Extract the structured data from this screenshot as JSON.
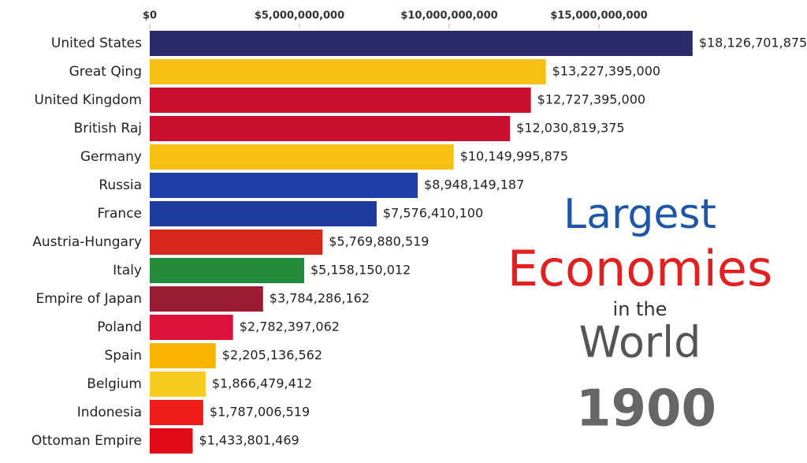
{
  "chart_data": {
    "type": "bar",
    "orientation": "horizontal",
    "title_lines": [
      {
        "text": "Largest",
        "color": "#1d57a6"
      },
      {
        "text": "Economies",
        "color": "#e0211f"
      },
      {
        "text": "in the",
        "color": "#333333"
      },
      {
        "text": "World",
        "color": "#555555"
      }
    ],
    "year": "1900",
    "categories": [
      "United States",
      "Great Qing",
      "United Kingdom",
      "British Raj",
      "Germany",
      "Russia",
      "France",
      "Austria-Hungary",
      "Italy",
      "Empire of Japan",
      "Poland",
      "Spain",
      "Belgium",
      "Indonesia",
      "Ottoman Empire"
    ],
    "values": [
      18126701875,
      13227395000,
      12727395000,
      12030819375,
      10149995875,
      8948149187,
      7576410100,
      5769880519,
      5158150012,
      3784286162,
      2782397062,
      2205136562,
      1866479412,
      1787006519,
      1433801469
    ],
    "value_labels": [
      "$18,126,701,875",
      "$13,227,395,000",
      "$12,727,395,000",
      "$12,030,819,375",
      "$10,149,995,875",
      "$8,948,149,187",
      "$7,576,410,100",
      "$5,769,880,519",
      "$5,158,150,012",
      "$3,784,286,162",
      "$2,782,397,062",
      "$2,205,136,562",
      "$1,866,479,412",
      "$1,787,006,519",
      "$1,433,801,469"
    ],
    "colors": [
      "#2b2a6b",
      "#f8c012",
      "#c8102e",
      "#c8102e",
      "#f8c012",
      "#1f3fa8",
      "#1d3a9c",
      "#d7261b",
      "#228b3c",
      "#9b1b30",
      "#dc143c",
      "#f8b400",
      "#f5cc1f",
      "#ef1c1c",
      "#e30a17"
    ],
    "xlim": [
      0,
      20000000000
    ],
    "xticks": [
      {
        "value": 0,
        "label": "$0"
      },
      {
        "value": 5000000000,
        "label": "$5,000,000,000"
      },
      {
        "value": 10000000000,
        "label": "$10,000,000,000"
      },
      {
        "value": 15000000000,
        "label": "$15,000,000,000"
      }
    ]
  }
}
